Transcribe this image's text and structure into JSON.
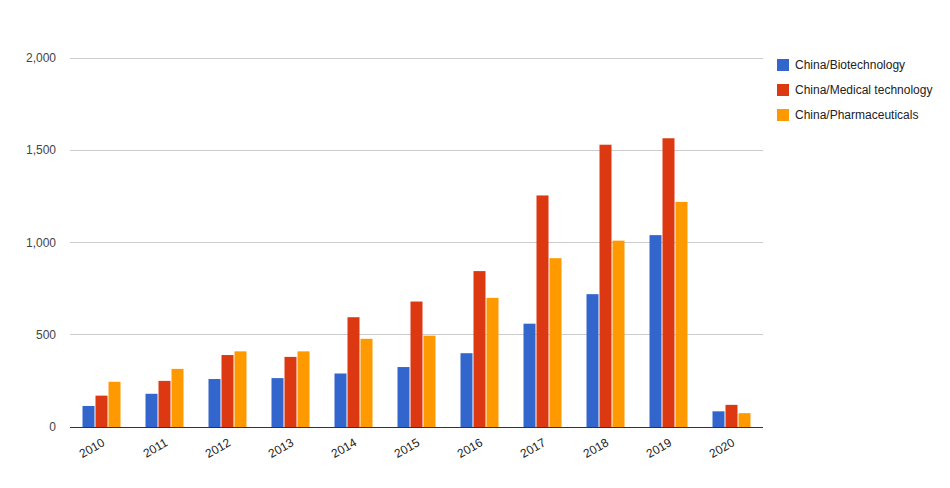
{
  "chart_data": {
    "type": "bar",
    "categories": [
      "2010",
      "2011",
      "2012",
      "2013",
      "2014",
      "2015",
      "2016",
      "2017",
      "2018",
      "2019",
      "2020"
    ],
    "series": [
      {
        "name": "China/Biotechnology",
        "color": "#3366cc",
        "values": [
          114,
          180,
          260,
          265,
          290,
          325,
          400,
          560,
          720,
          1040,
          85
        ]
      },
      {
        "name": "China/Medical technology",
        "color": "#dc3912",
        "values": [
          170,
          250,
          390,
          380,
          595,
          680,
          845,
          1255,
          1530,
          1565,
          120
        ]
      },
      {
        "name": "China/Pharmaceuticals",
        "color": "#ff9900",
        "values": [
          245,
          315,
          410,
          410,
          478,
          495,
          700,
          915,
          1010,
          1220,
          75
        ]
      }
    ],
    "ylim": [
      0,
      2000
    ],
    "yticks": [
      0,
      500,
      {
        "value": 1000,
        "label": "1,000"
      },
      {
        "value": 1500,
        "label": "1,500"
      },
      {
        "value": 2000,
        "label": "2,000"
      }
    ],
    "grid": true,
    "legend": "right"
  }
}
